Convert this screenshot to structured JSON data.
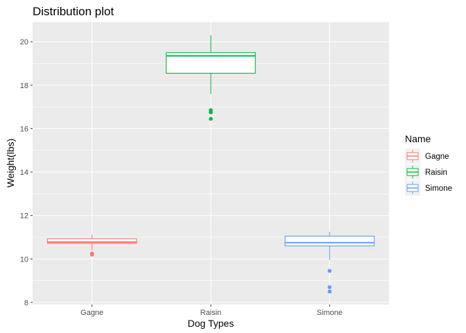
{
  "chart_data": {
    "type": "box",
    "title": "Distribution plot",
    "xlabel": "Dog Types",
    "ylabel": "Weight(lbs)",
    "categories": [
      "Gagne",
      "Raisin",
      "Simone"
    ],
    "ylim": [
      7.9,
      20.9
    ],
    "y_ticks": [
      8,
      10,
      12,
      14,
      16,
      18,
      20
    ],
    "grid": true,
    "legend": {
      "title": "Name",
      "position": "right"
    },
    "series": [
      {
        "name": "Gagne",
        "color": "#F8766D",
        "whisker_low": 10.4,
        "q1": 10.72,
        "median": 10.78,
        "q3": 10.93,
        "whisker_high": 11.12,
        "outliers": [
          10.2,
          10.25
        ]
      },
      {
        "name": "Raisin",
        "color": "#00BA38",
        "whisker_low": 17.6,
        "q1": 18.55,
        "median": 19.35,
        "q3": 19.5,
        "whisker_high": 20.3,
        "outliers": [
          16.45,
          16.75,
          16.85
        ]
      },
      {
        "name": "Simone",
        "color": "#619CFF",
        "whisker_low": 9.95,
        "q1": 10.6,
        "median": 10.75,
        "q3": 11.05,
        "whisker_high": 11.25,
        "outliers": [
          9.45,
          8.7,
          8.5
        ]
      }
    ]
  }
}
